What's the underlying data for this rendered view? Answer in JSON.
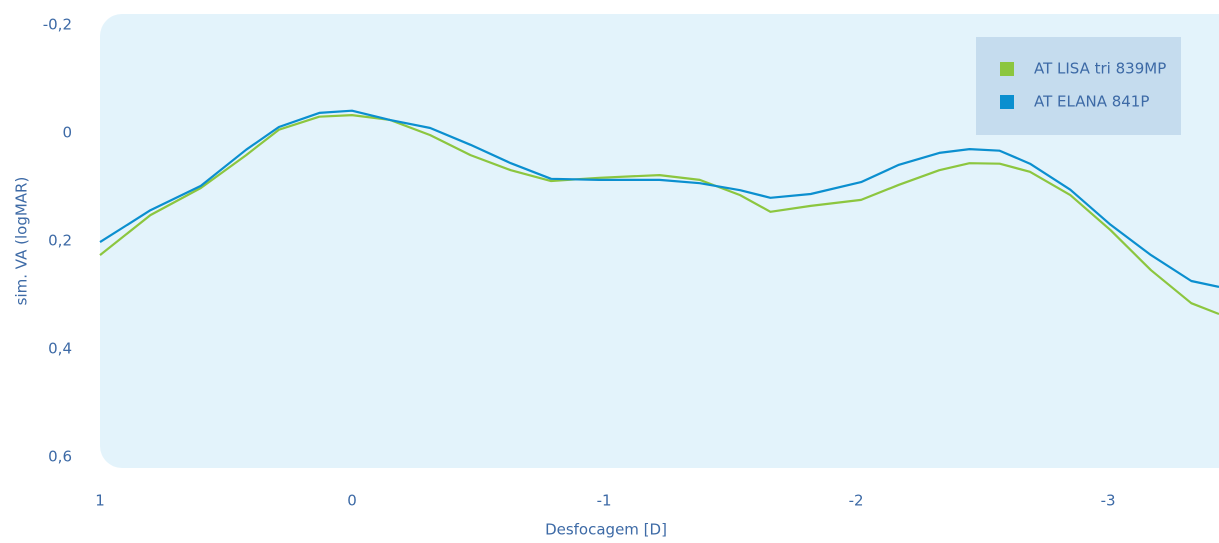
{
  "chart_data": {
    "type": "line",
    "x_label": "Desfocagem [D]",
    "y_label": "sim. VA (logMAR)",
    "x": [
      1,
      0.8,
      0.6,
      0.42,
      0.29,
      0.13,
      0,
      -0.15,
      -0.31,
      -0.47,
      -0.63,
      -0.79,
      -0.98,
      -1.22,
      -1.38,
      -1.54,
      -1.66,
      -1.82,
      -2.02,
      -2.17,
      -2.33,
      -2.45,
      -2.57,
      -2.69,
      -2.85,
      -3.01,
      -3.17,
      -3.33,
      -3.44
    ],
    "series": [
      {
        "name": "AT LISA tri 839MP",
        "color": "#8cc63f",
        "values": [
          0.226,
          0.152,
          0.102,
          0.041,
          -0.006,
          -0.03,
          -0.033,
          -0.024,
          0.004,
          0.041,
          0.069,
          0.089,
          0.083,
          0.078,
          0.087,
          0.115,
          0.146,
          0.135,
          0.124,
          0.096,
          0.069,
          0.056,
          0.057,
          0.072,
          0.115,
          0.18,
          0.254,
          0.315,
          0.335
        ]
      },
      {
        "name": "AT ELANA 841P",
        "color": "#0b8fcf",
        "values": [
          0.202,
          0.143,
          0.098,
          0.031,
          -0.011,
          -0.037,
          -0.041,
          -0.024,
          -0.009,
          0.022,
          0.056,
          0.085,
          0.087,
          0.087,
          0.093,
          0.106,
          0.12,
          0.113,
          0.091,
          0.059,
          0.037,
          0.03,
          0.033,
          0.057,
          0.105,
          0.17,
          0.226,
          0.274,
          0.285
        ]
      }
    ],
    "xlim": [
      1,
      -3.44
    ],
    "xticks": [
      1,
      0,
      -1,
      -2,
      -3
    ],
    "ylim": [
      -0.22,
      0.62
    ],
    "y_inverted": true,
    "yticks": [
      {
        "value": -0.2,
        "label": "-0,2"
      },
      0,
      {
        "value": 0.2,
        "label": "0,2"
      },
      {
        "value": 0.4,
        "label": "0,4"
      },
      {
        "value": 0.6,
        "label": "0,6"
      }
    ],
    "grid": false,
    "legend": "top-right"
  }
}
